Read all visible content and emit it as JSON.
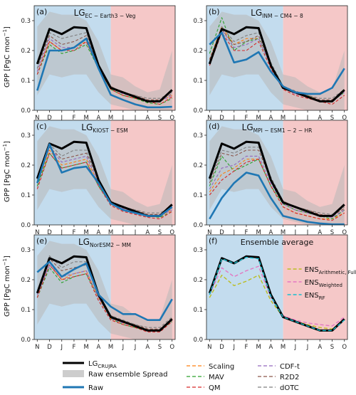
{
  "ylabel": "GPP [PgC mon",
  "ylabel_sup": "−1",
  "ylabel_end": "]",
  "months": [
    "N",
    "D",
    "J",
    "F",
    "M",
    "A",
    "M",
    "J",
    "J",
    "A",
    "S",
    "O"
  ],
  "yticks": [
    "0.0",
    "0.1",
    "0.2",
    "0.3"
  ],
  "colors": {
    "ref": "#000000",
    "raw": "#1f77b4",
    "spread": "#b8b8b8",
    "bg_left": "#c3dcee",
    "bg_right": "#f5c8c8",
    "scaling": "#ff7f0e",
    "mav": "#2ca02c",
    "qm": "#d62728",
    "cdft": "#9467bd",
    "r2d2": "#8c564b",
    "dotc": "#7f7f7f",
    "ens_arith": "#bcbd22",
    "ens_weighted": "#e377c2",
    "ens_rf": "#17becf"
  },
  "legend": {
    "ref_base": "LG",
    "ref_sub": "CRUJRA",
    "spread": "Raw ensemble Spread",
    "raw": "Raw",
    "scaling": "Scaling",
    "mav": "MAV",
    "qm": "QM",
    "cdft": "CDF-t",
    "r2d2": "R2D2",
    "dotc": "dOTC"
  },
  "ens_legend": {
    "base": "ENS",
    "arith_sub": "Arithmetic, Full",
    "weighted_sub": "Weighted",
    "rf_sub": "RF"
  },
  "chart_data": [
    {
      "type": "line",
      "panel": "(a)",
      "title_base": "LG",
      "title_sub": "EC − Earth3 − Veg",
      "ylim": [
        0,
        0.35
      ],
      "reference": [
        0.155,
        0.272,
        0.255,
        0.278,
        0.275,
        0.15,
        0.075,
        0.06,
        0.045,
        0.03,
        0.03,
        0.068
      ],
      "spread_upper": [
        0.28,
        0.33,
        0.32,
        0.32,
        0.3,
        0.23,
        0.12,
        0.11,
        0.08,
        0.06,
        0.07,
        0.2
      ],
      "spread_lower": [
        0.05,
        0.12,
        0.11,
        0.12,
        0.12,
        0.06,
        0.02,
        0.01,
        0.0,
        0.0,
        0.0,
        0.0
      ],
      "raw": [
        0.066,
        0.2,
        0.2,
        0.21,
        0.24,
        0.14,
        0.052,
        0.035,
        0.02,
        0.01,
        0.01,
        0.012
      ],
      "methods": {
        "scaling": [
          0.13,
          0.23,
          0.2,
          0.21,
          0.23,
          0.14,
          0.07,
          0.05,
          0.04,
          0.03,
          0.03,
          0.05
        ],
        "mav": [
          0.12,
          0.22,
          0.19,
          0.2,
          0.22,
          0.14,
          0.07,
          0.05,
          0.04,
          0.025,
          0.02,
          0.04
        ],
        "qm": [
          0.12,
          0.23,
          0.2,
          0.2,
          0.23,
          0.14,
          0.07,
          0.05,
          0.04,
          0.03,
          0.02,
          0.045
        ],
        "cdft": [
          0.13,
          0.24,
          0.21,
          0.21,
          0.24,
          0.15,
          0.075,
          0.055,
          0.045,
          0.03,
          0.03,
          0.05
        ],
        "r2d2": [
          0.14,
          0.25,
          0.22,
          0.23,
          0.25,
          0.15,
          0.08,
          0.06,
          0.05,
          0.035,
          0.035,
          0.055
        ],
        "dotc": [
          0.14,
          0.26,
          0.24,
          0.25,
          0.26,
          0.15,
          0.08,
          0.06,
          0.05,
          0.04,
          0.04,
          0.06
        ]
      }
    },
    {
      "type": "line",
      "panel": "(b)",
      "title_base": "LG",
      "title_sub": "INM − CM4 − 8",
      "ylim": [
        0,
        0.35
      ],
      "reference": [
        0.155,
        0.272,
        0.255,
        0.278,
        0.275,
        0.15,
        0.075,
        0.06,
        0.045,
        0.03,
        0.03,
        0.068
      ],
      "spread_upper": [
        0.28,
        0.33,
        0.32,
        0.32,
        0.3,
        0.23,
        0.12,
        0.11,
        0.08,
        0.06,
        0.07,
        0.2
      ],
      "spread_lower": [
        0.05,
        0.12,
        0.11,
        0.12,
        0.12,
        0.06,
        0.02,
        0.01,
        0.0,
        0.0,
        0.0,
        0.0
      ],
      "raw": [
        0.22,
        0.26,
        0.16,
        0.17,
        0.195,
        0.13,
        0.08,
        0.06,
        0.055,
        0.055,
        0.075,
        0.14
      ],
      "methods": {
        "scaling": [
          0.17,
          0.28,
          0.22,
          0.24,
          0.24,
          0.15,
          0.08,
          0.06,
          0.05,
          0.03,
          0.03,
          0.07
        ],
        "mav": [
          0.19,
          0.31,
          0.2,
          0.23,
          0.24,
          0.15,
          0.08,
          0.06,
          0.05,
          0.03,
          0.03,
          0.06
        ],
        "qm": [
          0.15,
          0.26,
          0.2,
          0.2,
          0.23,
          0.14,
          0.07,
          0.05,
          0.04,
          0.03,
          0.02,
          0.05
        ],
        "cdft": [
          0.16,
          0.27,
          0.21,
          0.22,
          0.24,
          0.15,
          0.075,
          0.055,
          0.045,
          0.03,
          0.03,
          0.06
        ],
        "r2d2": [
          0.17,
          0.27,
          0.22,
          0.23,
          0.25,
          0.15,
          0.08,
          0.06,
          0.05,
          0.035,
          0.035,
          0.065
        ],
        "dotc": [
          0.16,
          0.28,
          0.23,
          0.25,
          0.26,
          0.16,
          0.08,
          0.065,
          0.05,
          0.04,
          0.04,
          0.07
        ]
      }
    },
    {
      "type": "line",
      "panel": "(c)",
      "title_base": "LG",
      "title_sub": "KIOST − ESM",
      "ylim": [
        0,
        0.35
      ],
      "reference": [
        0.155,
        0.272,
        0.255,
        0.278,
        0.275,
        0.15,
        0.075,
        0.06,
        0.045,
        0.03,
        0.03,
        0.068
      ],
      "spread_upper": [
        0.28,
        0.33,
        0.32,
        0.32,
        0.3,
        0.23,
        0.12,
        0.11,
        0.08,
        0.06,
        0.07,
        0.2
      ],
      "spread_lower": [
        0.05,
        0.12,
        0.11,
        0.12,
        0.12,
        0.06,
        0.02,
        0.01,
        0.0,
        0.0,
        0.0,
        0.0
      ],
      "raw": [
        0.14,
        0.27,
        0.175,
        0.19,
        0.195,
        0.14,
        0.072,
        0.05,
        0.04,
        0.03,
        0.03,
        0.06
      ],
      "methods": {
        "scaling": [
          0.13,
          0.25,
          0.2,
          0.21,
          0.22,
          0.14,
          0.07,
          0.05,
          0.04,
          0.03,
          0.03,
          0.05
        ],
        "mav": [
          0.13,
          0.24,
          0.19,
          0.2,
          0.21,
          0.13,
          0.07,
          0.05,
          0.04,
          0.03,
          0.025,
          0.045
        ],
        "qm": [
          0.12,
          0.24,
          0.19,
          0.2,
          0.21,
          0.13,
          0.065,
          0.045,
          0.035,
          0.025,
          0.02,
          0.045
        ],
        "cdft": [
          0.14,
          0.26,
          0.21,
          0.22,
          0.23,
          0.14,
          0.07,
          0.055,
          0.045,
          0.03,
          0.03,
          0.05
        ],
        "r2d2": [
          0.14,
          0.26,
          0.22,
          0.23,
          0.24,
          0.15,
          0.08,
          0.06,
          0.05,
          0.035,
          0.035,
          0.055
        ],
        "dotc": [
          0.15,
          0.27,
          0.23,
          0.25,
          0.25,
          0.15,
          0.08,
          0.06,
          0.05,
          0.04,
          0.04,
          0.06
        ]
      }
    },
    {
      "type": "line",
      "panel": "(d)",
      "title_base": "LG",
      "title_sub": "MPI − ESM1 − 2 − HR",
      "ylim": [
        0,
        0.35
      ],
      "reference": [
        0.155,
        0.272,
        0.255,
        0.278,
        0.275,
        0.15,
        0.075,
        0.06,
        0.045,
        0.03,
        0.03,
        0.068
      ],
      "spread_upper": [
        0.28,
        0.33,
        0.32,
        0.32,
        0.3,
        0.23,
        0.12,
        0.11,
        0.08,
        0.06,
        0.07,
        0.2
      ],
      "spread_lower": [
        0.05,
        0.12,
        0.11,
        0.12,
        0.12,
        0.06,
        0.02,
        0.01,
        0.0,
        0.0,
        0.0,
        0.0
      ],
      "raw": [
        0.02,
        0.09,
        0.14,
        0.175,
        0.165,
        0.09,
        0.03,
        0.02,
        0.01,
        0.005,
        0.002,
        0.002
      ],
      "methods": {
        "scaling": [
          0.11,
          0.17,
          0.19,
          0.22,
          0.22,
          0.13,
          0.06,
          0.04,
          0.03,
          0.02,
          0.02,
          0.04
        ],
        "mav": [
          0.13,
          0.23,
          0.18,
          0.2,
          0.22,
          0.13,
          0.07,
          0.05,
          0.04,
          0.03,
          0.02,
          0.05
        ],
        "qm": [
          0.1,
          0.15,
          0.18,
          0.21,
          0.22,
          0.13,
          0.06,
          0.04,
          0.03,
          0.02,
          0.015,
          0.04
        ],
        "cdft": [
          0.12,
          0.19,
          0.2,
          0.23,
          0.23,
          0.14,
          0.07,
          0.05,
          0.04,
          0.03,
          0.025,
          0.05
        ],
        "r2d2": [
          0.14,
          0.24,
          0.23,
          0.25,
          0.25,
          0.15,
          0.08,
          0.06,
          0.05,
          0.035,
          0.03,
          0.055
        ],
        "dotc": [
          0.15,
          0.25,
          0.24,
          0.26,
          0.26,
          0.16,
          0.08,
          0.06,
          0.05,
          0.04,
          0.035,
          0.06
        ]
      }
    },
    {
      "type": "line",
      "panel": "(e)",
      "title_base": "LG",
      "title_sub": "NorESM2 − MM",
      "ylim": [
        0,
        0.35
      ],
      "reference": [
        0.155,
        0.272,
        0.255,
        0.278,
        0.275,
        0.15,
        0.075,
        0.06,
        0.045,
        0.03,
        0.03,
        0.068
      ],
      "spread_upper": [
        0.28,
        0.33,
        0.32,
        0.32,
        0.3,
        0.23,
        0.12,
        0.11,
        0.08,
        0.06,
        0.07,
        0.2
      ],
      "spread_lower": [
        0.05,
        0.12,
        0.11,
        0.12,
        0.12,
        0.06,
        0.02,
        0.01,
        0.0,
        0.0,
        0.0,
        0.0
      ],
      "raw": [
        0.225,
        0.26,
        0.21,
        0.235,
        0.255,
        0.15,
        0.11,
        0.085,
        0.085,
        0.065,
        0.065,
        0.135
      ],
      "methods": {
        "scaling": [
          0.15,
          0.25,
          0.2,
          0.22,
          0.23,
          0.14,
          0.07,
          0.055,
          0.045,
          0.03,
          0.03,
          0.07
        ],
        "mav": [
          0.14,
          0.24,
          0.19,
          0.21,
          0.22,
          0.14,
          0.07,
          0.05,
          0.04,
          0.03,
          0.03,
          0.06
        ],
        "qm": [
          0.14,
          0.25,
          0.2,
          0.21,
          0.22,
          0.13,
          0.065,
          0.05,
          0.04,
          0.025,
          0.025,
          0.06
        ],
        "cdft": [
          0.15,
          0.25,
          0.21,
          0.22,
          0.23,
          0.14,
          0.07,
          0.055,
          0.045,
          0.03,
          0.03,
          0.065
        ],
        "r2d2": [
          0.16,
          0.27,
          0.23,
          0.24,
          0.25,
          0.15,
          0.08,
          0.06,
          0.05,
          0.035,
          0.035,
          0.07
        ],
        "dotc": [
          0.16,
          0.28,
          0.24,
          0.26,
          0.26,
          0.15,
          0.08,
          0.065,
          0.05,
          0.04,
          0.04,
          0.075
        ]
      }
    },
    {
      "type": "line",
      "panel": "(f)",
      "title": "Ensemble average",
      "ylim": [
        0,
        0.35
      ],
      "reference": [
        0.155,
        0.272,
        0.255,
        0.278,
        0.275,
        0.15,
        0.075,
        0.06,
        0.045,
        0.03,
        0.03,
        0.068
      ],
      "ensembles": {
        "arith": [
          0.14,
          0.215,
          0.18,
          0.195,
          0.215,
          0.13,
          0.075,
          0.06,
          0.05,
          0.04,
          0.035,
          0.065
        ],
        "weighted": [
          0.15,
          0.24,
          0.21,
          0.23,
          0.245,
          0.14,
          0.08,
          0.065,
          0.055,
          0.05,
          0.045,
          0.075
        ],
        "rf": [
          0.15,
          0.27,
          0.255,
          0.275,
          0.27,
          0.145,
          0.075,
          0.06,
          0.045,
          0.03,
          0.03,
          0.065
        ]
      }
    }
  ]
}
